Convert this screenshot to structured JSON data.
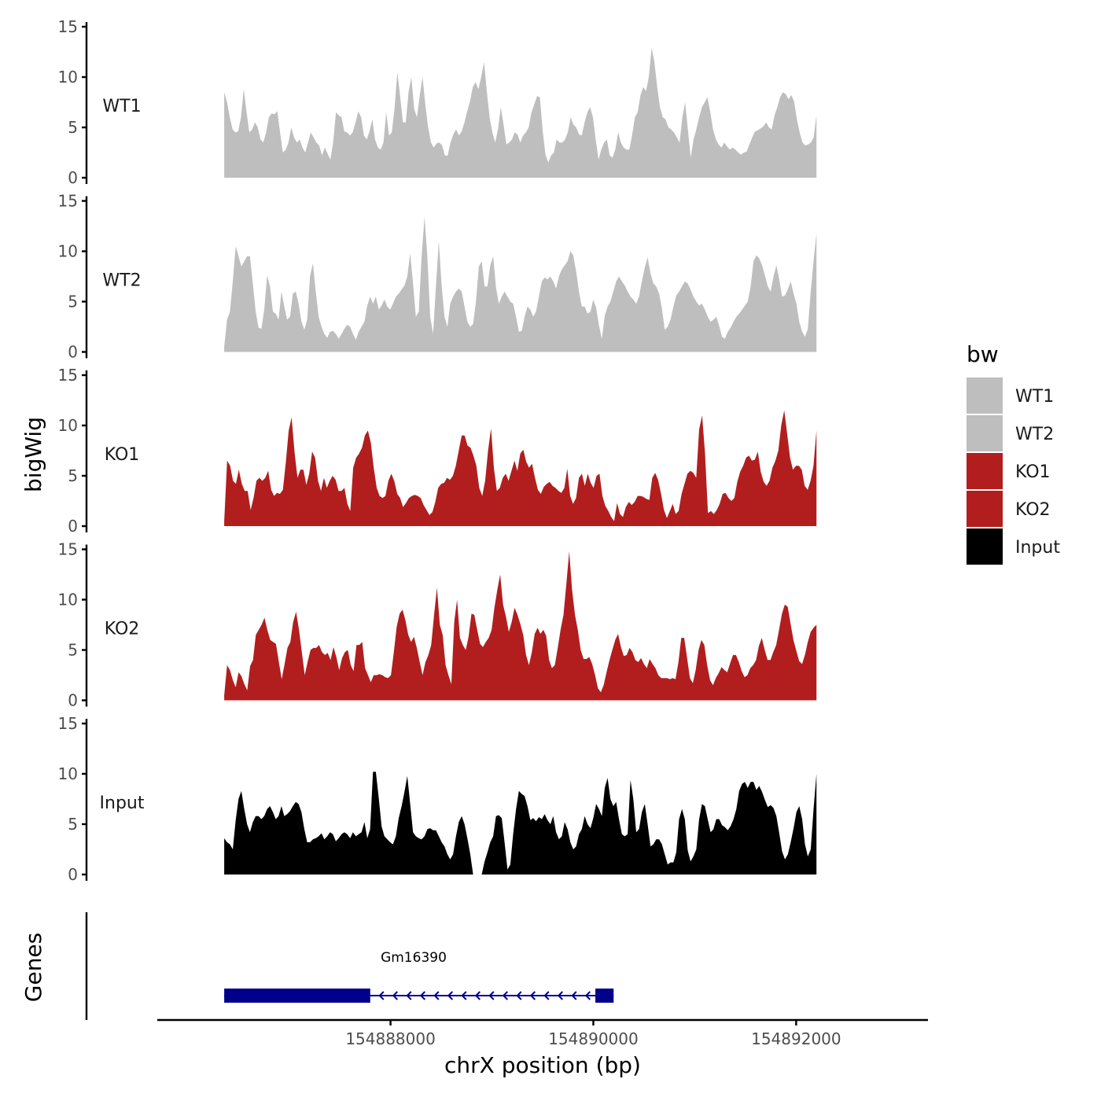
{
  "chart_data": {
    "type": "area",
    "ylabel": "bigWig",
    "xlabel": "chrX position (bp)",
    "ylim": [
      0,
      15
    ],
    "y_ticks": [
      0,
      5,
      10,
      15
    ],
    "xlim": [
      154885700,
      154893300
    ],
    "x_ticks": [
      154888000,
      154890000,
      154892000
    ],
    "x_tick_labels": [
      "154888000",
      "154890000",
      "154892000"
    ],
    "x_start": 154886360,
    "x_end": 154892200,
    "legend": {
      "title": "bw",
      "position": "right",
      "items": [
        {
          "label": "WT1",
          "color": "#bebebe"
        },
        {
          "label": "WT2",
          "color": "#bebebe"
        },
        {
          "label": "KO1",
          "color": "#b21e1e"
        },
        {
          "label": "KO2",
          "color": "#b21e1e"
        },
        {
          "label": "Input",
          "color": "#000000"
        }
      ]
    },
    "tracks": [
      {
        "name": "WT1",
        "color": "#bebebe",
        "values": [
          8.5,
          7.5,
          6,
          4.8,
          4.5,
          4.6,
          6,
          8.8,
          6.5,
          4.5,
          4.8,
          5.5,
          5,
          3.8,
          3.5,
          4.5,
          6,
          6.4,
          6.3,
          6.6,
          4.5,
          2.5,
          2.8,
          3.5,
          5,
          4,
          3.5,
          3.8,
          3,
          2.5,
          3.5,
          4.5,
          4,
          3.5,
          3.2,
          2.2,
          3,
          2.4,
          1.8,
          3.5,
          6.5,
          6.2,
          6,
          4.6,
          4.5,
          4.2,
          4.5,
          5.5,
          6.6,
          6,
          4.2,
          3.8,
          4.6,
          5.8,
          3.8,
          3,
          2.8,
          3.5,
          6.5,
          4.2,
          4.5,
          7,
          10.5,
          8,
          5.5,
          5.5,
          8.5,
          10,
          6.8,
          6,
          8.2,
          10,
          7.2,
          5,
          3.5,
          3,
          3.4,
          3.5,
          3.2,
          2.2,
          2.2,
          3.5,
          4.3,
          4.8,
          4.2,
          4.6,
          5.5,
          6.6,
          7.6,
          9,
          9.5,
          8.8,
          10,
          11.5,
          8.6,
          6,
          4.5,
          3.5,
          4.8,
          7,
          5.3,
          3.3,
          3.5,
          3.8,
          4.5,
          4.3,
          3.5,
          4.2,
          4.5,
          5,
          6.5,
          7.3,
          8.1,
          8,
          4.7,
          2.3,
          1.5,
          2.2,
          2.5,
          3.8,
          3.5,
          3.5,
          3.8,
          4.5,
          6,
          5.3,
          5,
          4.3,
          4.2,
          5.5,
          6.5,
          7,
          6,
          3.8,
          1.8,
          2.8,
          3.5,
          3.8,
          2.2,
          2,
          2.8,
          4.5,
          3.5,
          3,
          2.8,
          2.8,
          4.2,
          6,
          6.5,
          8.2,
          9,
          8.6,
          10,
          12.9,
          11.5,
          9,
          7,
          6,
          5.8,
          5,
          4.8,
          4.5,
          4,
          3.5,
          6,
          7.5,
          4.7,
          2,
          3.8,
          4.8,
          6,
          7,
          7.5,
          8,
          6.5,
          4.8,
          3.8,
          3.3,
          3,
          3.5,
          3.1,
          2.8,
          3,
          2.8,
          2.5,
          2.3,
          2.5,
          2.6,
          3.3,
          4,
          4.6,
          4.7,
          4.9,
          5.1,
          5.5,
          5,
          4.8,
          6.2,
          7,
          8,
          8.5,
          8.3,
          7.8,
          8.2,
          7.6,
          5.8,
          4.5,
          3.5,
          3.2,
          3.3,
          3.5,
          4,
          6.2
        ]
      },
      {
        "name": "WT2",
        "color": "#bebebe",
        "values": [
          0.5,
          3.2,
          4,
          7,
          10.5,
          9.5,
          8.5,
          9,
          9.5,
          9.5,
          6.8,
          4,
          2.4,
          2.3,
          4.2,
          7.6,
          6.5,
          4,
          3.8,
          3.2,
          6,
          4.5,
          3.2,
          3.5,
          5.8,
          6,
          4.8,
          3,
          2.2,
          3.2,
          7.5,
          8.8,
          6,
          3.5,
          2.5,
          1.8,
          1.4,
          2,
          2.1,
          1.8,
          1.3,
          1.8,
          2.3,
          2.7,
          2.5,
          1.8,
          1.2,
          2,
          2.5,
          3,
          4.6,
          5.5,
          4.8,
          5.5,
          4.2,
          4.6,
          5.2,
          4.5,
          4.2,
          4.8,
          5.5,
          5.8,
          6.2,
          6.6,
          7.5,
          9.8,
          6.8,
          3.5,
          4,
          9.5,
          13.4,
          9.5,
          3.5,
          1.8,
          6.5,
          11,
          6.6,
          3.5,
          2.5,
          4.8,
          5.5,
          6,
          6.3,
          6,
          4.5,
          3,
          2.5,
          2.8,
          5,
          8.5,
          9,
          6.5,
          6.5,
          8.6,
          9.5,
          6.4,
          4.8,
          5.5,
          6,
          5.5,
          5,
          4.8,
          3.5,
          2,
          2.1,
          3.5,
          4.5,
          4.2,
          3.5,
          4,
          5.5,
          7,
          7.4,
          7.2,
          7.5,
          7,
          6.3,
          7.5,
          8.2,
          8.6,
          9,
          10,
          9.6,
          8,
          6,
          4.5,
          4.5,
          3.8,
          4,
          5.2,
          4.4,
          2.6,
          1.3,
          3.6,
          4.5,
          5,
          6,
          7,
          7.5,
          7,
          6.6,
          6,
          5.5,
          5.2,
          4.8,
          5.5,
          7,
          8.4,
          9.4,
          7.8,
          6.8,
          6.5,
          5.8,
          4.3,
          2.2,
          2.5,
          3.2,
          4.5,
          5.6,
          6,
          6.5,
          7,
          6.8,
          6.2,
          5.5,
          5,
          4.6,
          4.8,
          4.2,
          3.5,
          3,
          3.2,
          3.5,
          2.6,
          1.5,
          1.3,
          2,
          2.4,
          3,
          3.5,
          3.8,
          4.2,
          4.6,
          5,
          6.5,
          9,
          9.6,
          9.3,
          8.6,
          7.6,
          6.5,
          6,
          7.5,
          8.6,
          7.2,
          5.5,
          5.6,
          6.2,
          7,
          5.8,
          4.8,
          3,
          2,
          1.5,
          2.3,
          6,
          9,
          11.8
        ]
      },
      {
        "name": "KO1",
        "color": "#b21e1e",
        "values": [
          0.5,
          6.5,
          6,
          4.5,
          4.2,
          5.6,
          4.2,
          3.5,
          3.5,
          1.6,
          2.8,
          4.5,
          4.8,
          4.5,
          4.8,
          5.5,
          3.6,
          3,
          3.3,
          3.2,
          3.6,
          6.3,
          9.5,
          10.8,
          7.3,
          4.8,
          5.6,
          5.6,
          4.1,
          5.2,
          7.4,
          6.8,
          4.5,
          3.5,
          4.8,
          3.8,
          4.5,
          5,
          4.6,
          3.5,
          3.5,
          3.8,
          2.2,
          1.5,
          5.8,
          6.8,
          7.2,
          7.8,
          9,
          9.5,
          8.3,
          5.8,
          3.8,
          3,
          2.8,
          3,
          4.5,
          5.2,
          4.5,
          3.2,
          2.8,
          1.9,
          2.3,
          2.8,
          3,
          3.1,
          3,
          2.8,
          2.1,
          1.6,
          1.1,
          1.4,
          2.4,
          3.8,
          4.2,
          4.3,
          4.8,
          4.6,
          5,
          6,
          7.5,
          9,
          9,
          8,
          7.8,
          7,
          6,
          3.8,
          3,
          4.5,
          7.5,
          9.7,
          5.7,
          3.5,
          3.8,
          4.8,
          5.2,
          4.5,
          5.5,
          6.5,
          5.5,
          7.2,
          7.6,
          6.4,
          5.8,
          6.2,
          4.8,
          3.6,
          3.2,
          3.9,
          4.2,
          4.4,
          4,
          3.8,
          3.5,
          3.3,
          3.8,
          5.7,
          3,
          2.2,
          2.8,
          4.8,
          5.2,
          4,
          5.2,
          4.3,
          3.8,
          5,
          5.2,
          3,
          2,
          1.5,
          0.9,
          0.5,
          2.3,
          1.2,
          0.9,
          1.9,
          2.4,
          2.1,
          2.4,
          3,
          3,
          2.9,
          2.7,
          2.6,
          4.8,
          5.3,
          4.6,
          3.2,
          1.6,
          0.8,
          1.5,
          2.2,
          1.2,
          1.5,
          3.2,
          4.2,
          5.2,
          5.5,
          5.3,
          4.8,
          9.6,
          11,
          7.2,
          1.3,
          1.5,
          1.2,
          1.6,
          2.2,
          3.2,
          3.3,
          2.8,
          2.5,
          2.8,
          4.4,
          5.4,
          6,
          6.8,
          7,
          6.5,
          6.6,
          7.4,
          5.4,
          4.4,
          4,
          4.5,
          5.8,
          6.5,
          7.5,
          10,
          11.5,
          9.2,
          6.8,
          5.6,
          6,
          6,
          5.6,
          4,
          3.6,
          4.5,
          6,
          9.5
        ]
      },
      {
        "name": "KO2",
        "color": "#b21e1e",
        "values": [
          0.5,
          3.5,
          3,
          2,
          1.3,
          2.8,
          2.4,
          1.6,
          1,
          3.4,
          4,
          6.5,
          7,
          7.5,
          8.2,
          7,
          6,
          5.8,
          5.6,
          3.8,
          2.1,
          3.6,
          5.2,
          5.8,
          7.8,
          8.8,
          7,
          4.8,
          2.5,
          3.8,
          5,
          5.2,
          5.2,
          5.5,
          4.8,
          4.5,
          4.7,
          4,
          5.3,
          4.3,
          3,
          4.2,
          4.8,
          5,
          3.5,
          2.9,
          5.5,
          5.5,
          5.8,
          3.2,
          2.5,
          1.8,
          2.5,
          2.5,
          2.6,
          2.5,
          2.3,
          2.2,
          2.5,
          4.8,
          7.3,
          8.6,
          9,
          8,
          6.5,
          5.8,
          6.3,
          5.2,
          3.8,
          2.5,
          3.8,
          4.5,
          5.5,
          8.5,
          11.2,
          7.5,
          6.5,
          3.5,
          2.5,
          1.6,
          7.8,
          10,
          6.2,
          5.5,
          5,
          6.3,
          8.6,
          8.5,
          7,
          5.6,
          5.3,
          5.8,
          6.2,
          7,
          9.2,
          11,
          12.5,
          9.5,
          8.3,
          6.8,
          7.8,
          9.2,
          8.5,
          7.6,
          6.5,
          4.5,
          3.5,
          4.8,
          6.6,
          7.2,
          6.6,
          7,
          6.4,
          4,
          3.2,
          3.5,
          5.2,
          7,
          8.5,
          11.5,
          14.8,
          11,
          8.5,
          7,
          5,
          4.1,
          4.1,
          4.3,
          3.6,
          2.5,
          1.2,
          0.8,
          1.5,
          2.8,
          4,
          5,
          6,
          6.6,
          5.3,
          4.4,
          4.5,
          5.2,
          4.8,
          4,
          3.8,
          4.2,
          3.6,
          3.2,
          4.1,
          3.6,
          3.2,
          2.5,
          2.2,
          2.2,
          2.2,
          2.1,
          2.2,
          2.1,
          3.8,
          6.2,
          6.2,
          4.2,
          2.2,
          1.7,
          3,
          5,
          6,
          5.5,
          3.5,
          2,
          1.5,
          2.2,
          2.7,
          3.3,
          3,
          2.8,
          3.7,
          4.5,
          4.5,
          3.8,
          2.9,
          2.3,
          2.5,
          3.2,
          3.5,
          4,
          5.4,
          6.2,
          5,
          4,
          4,
          4.8,
          5.5,
          7,
          8.6,
          9.5,
          9.3,
          7.6,
          6,
          4.9,
          3.9,
          3.6,
          4.5,
          5.8,
          6.8,
          7.2,
          7.5
        ]
      },
      {
        "name": "Input",
        "color": "#000000",
        "values": [
          3.6,
          3.2,
          3,
          2.5,
          5.4,
          7.5,
          8.3,
          6.5,
          5,
          4.2,
          5.2,
          5.8,
          5.8,
          5.5,
          5.8,
          6.5,
          6.8,
          6.2,
          5.5,
          5.8,
          6.8,
          5.8,
          6,
          6.3,
          6.8,
          7.2,
          7,
          6.2,
          4.5,
          3.2,
          3.2,
          3.5,
          3.6,
          3.8,
          4.1,
          3.5,
          3.8,
          4.2,
          4,
          3.3,
          3.6,
          4,
          4.2,
          4,
          3.6,
          4.2,
          3.8,
          4,
          4.2,
          5.2,
          3.6,
          4.5,
          10.2,
          10.2,
          7.6,
          4.8,
          3.8,
          3.5,
          3.2,
          3,
          3.8,
          5.6,
          6.8,
          8.2,
          9.8,
          7,
          4.2,
          3.8,
          3.6,
          3.5,
          3.8,
          4.5,
          4.6,
          4.4,
          4.4,
          3.8,
          3.2,
          2.8,
          2,
          1.5,
          2,
          3.8,
          5.2,
          5.8,
          5,
          3.6,
          2,
          0,
          null,
          null,
          0,
          1.3,
          2.2,
          3.2,
          3.8,
          5.8,
          5.9,
          5.6,
          3.2,
          0.5,
          1,
          4,
          6.5,
          8.3,
          8,
          7.8,
          6.8,
          5.4,
          5.6,
          5.3,
          5.7,
          5.5,
          6,
          5.4,
          5,
          5.8,
          4.2,
          3.5,
          3.8,
          5.2,
          4.5,
          3.2,
          2.5,
          2.8,
          4,
          4.5,
          5.8,
          5,
          4.6,
          5.6,
          7,
          6.5,
          5.8,
          8.6,
          9.6,
          7.5,
          6.8,
          7.2,
          5.5,
          4,
          3.8,
          4,
          9.4,
          7.5,
          4.2,
          4.5,
          6.2,
          7,
          5,
          2.8,
          3,
          3.5,
          3.5,
          3,
          2,
          1,
          1.2,
          1.2,
          2.2,
          5.5,
          6.5,
          5.5,
          2.4,
          1.3,
          1.8,
          2.5,
          5.5,
          7,
          6.8,
          5.5,
          4.2,
          4.5,
          5.5,
          5.5,
          4.9,
          4.7,
          4.4,
          4.8,
          5.5,
          6.5,
          8.3,
          9,
          9.2,
          8.6,
          9.2,
          9.2,
          8.4,
          8.8,
          8.2,
          7.4,
          6.7,
          6.9,
          6.6,
          5.8,
          4.1,
          2.3,
          1.5,
          2,
          3.2,
          4.6,
          6.2,
          6.8,
          5.5,
          3,
          1.8,
          2.5,
          6.5,
          10
        ]
      }
    ],
    "genes": {
      "label": "Genes",
      "items": [
        {
          "name": "Gm16390",
          "start": 154886360,
          "end": 154890200,
          "strand": "-",
          "color": "#00008b",
          "exons": [
            [
              154886360,
              154887800
            ],
            [
              154890020,
              154890200
            ]
          ]
        }
      ]
    }
  }
}
